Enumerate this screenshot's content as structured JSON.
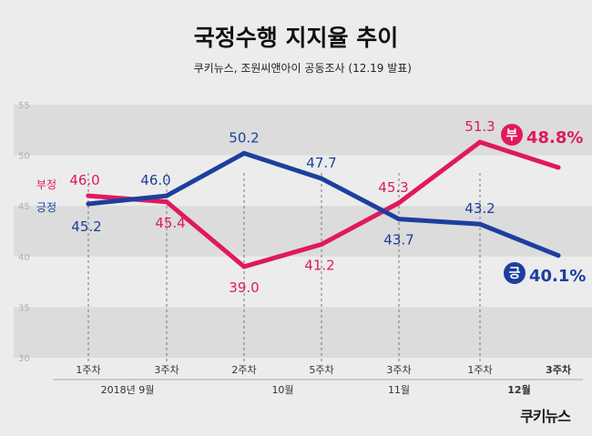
{
  "title": "국정수행 지지율 추이",
  "subtitle": "쿠키뉴스, 조원씨앤아이 공동조사 (12.19 발표)",
  "logo": "쿠키뉴스",
  "colors": {
    "approve": "#1c3f9e",
    "disapprove": "#e0195e",
    "bg": "#ececec",
    "band": "#dcdcdc"
  },
  "chart_data": {
    "type": "line",
    "categories": [
      "1주차",
      "3주차",
      "2주차",
      "5주차",
      "3주차",
      "1주차",
      "3주차"
    ],
    "category_groups": [
      {
        "label": "2018년 9월",
        "span": [
          0,
          1
        ]
      },
      {
        "label": "10월",
        "span": [
          2,
          3
        ]
      },
      {
        "label": "11월",
        "span": [
          4,
          4
        ]
      },
      {
        "label": "12월",
        "span": [
          5,
          6
        ]
      }
    ],
    "ylim": [
      30,
      55
    ],
    "yticks": [
      30,
      35,
      40,
      45,
      50,
      55
    ],
    "series": [
      {
        "name": "부정",
        "color": "#e0195e",
        "values": [
          46.0,
          45.4,
          39.0,
          41.2,
          45.3,
          51.3,
          48.8
        ],
        "labels": [
          "46.0",
          "45.4",
          "39.0",
          "41.2",
          "45.3",
          "51.3",
          "48.8%"
        ],
        "end_badge": "부"
      },
      {
        "name": "긍정",
        "color": "#1c3f9e",
        "values": [
          45.2,
          46.0,
          50.2,
          47.7,
          43.7,
          43.2,
          40.1
        ],
        "labels": [
          "45.2",
          "46.0",
          "50.2",
          "47.7",
          "43.7",
          "43.2",
          "40.1%"
        ],
        "end_badge": "긍"
      }
    ]
  }
}
